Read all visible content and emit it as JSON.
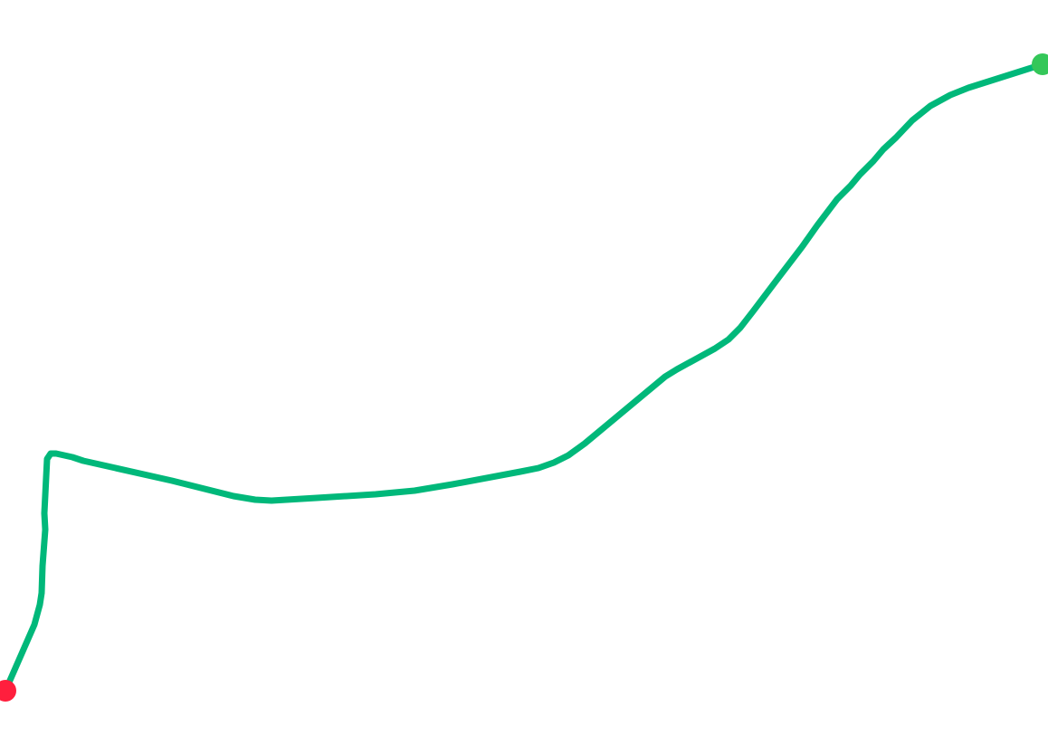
{
  "route": {
    "line_color": "#00b87a",
    "start_marker_color": "#ff1f3d",
    "end_marker_color": "#34c759"
  }
}
